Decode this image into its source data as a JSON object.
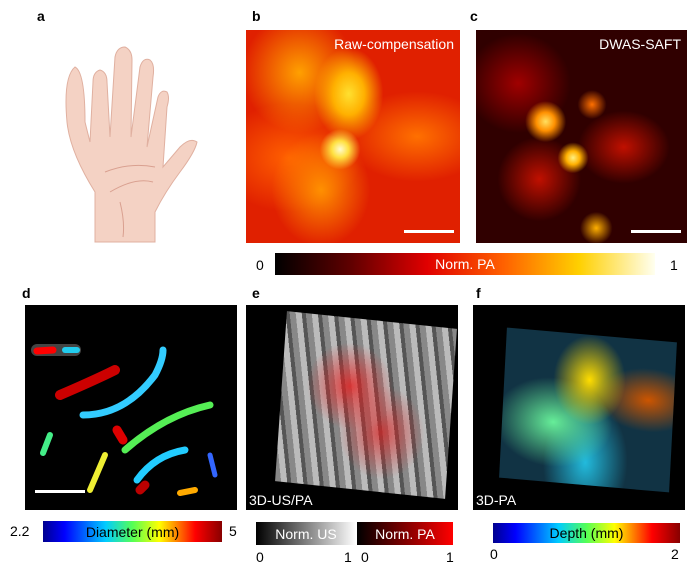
{
  "panels": {
    "a": {
      "label": "a"
    },
    "b": {
      "label": "b",
      "title": "Raw-compensation"
    },
    "c": {
      "label": "c",
      "title": "DWAS-SAFT"
    },
    "d": {
      "label": "d"
    },
    "e": {
      "label": "e",
      "title": "3D-US/PA"
    },
    "f": {
      "label": "f",
      "title": "3D-PA"
    }
  },
  "colorbars": {
    "pa": {
      "label": "Norm. PA",
      "min": "0",
      "max": "1"
    },
    "diameter": {
      "label": "Diameter (mm)",
      "min": "2.2",
      "max": "5"
    },
    "us": {
      "label": "Norm. US",
      "min": "0",
      "max": "1"
    },
    "pa3d": {
      "label": "Norm. PA",
      "min": "0",
      "max": "1"
    },
    "depth": {
      "label": "Depth (mm)",
      "min": "0",
      "max": "2"
    }
  }
}
